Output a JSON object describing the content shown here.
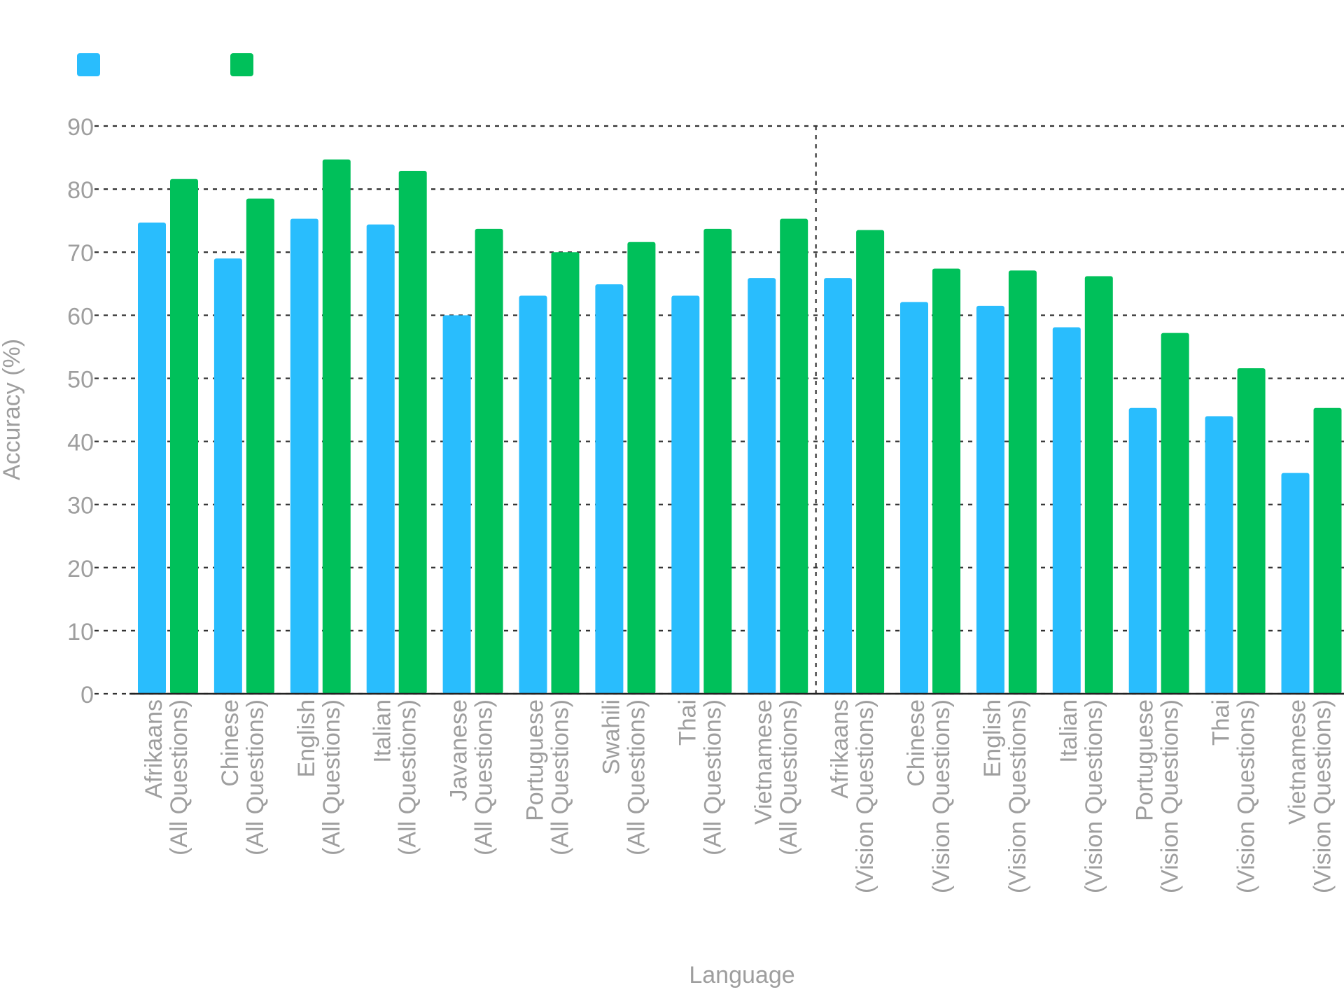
{
  "chart_data": {
    "type": "bar",
    "xlabel": "Language",
    "ylabel": "Accuracy (%)",
    "ylim": [
      0,
      90
    ],
    "yticks": [
      0,
      10,
      20,
      30,
      40,
      50,
      60,
      70,
      80,
      90
    ],
    "grid": true,
    "legend_position": "top-left",
    "categories": [
      "Afrikaans\n(All Questions)",
      "Chinese\n(All Questions)",
      "English\n(All Questions)",
      "Italian\n(All Questions)",
      "Javanese\n(All Questions)",
      "Portuguese\n(All Questions)",
      "Swahili\n(All Questions)",
      "Thai\n(All Questions)",
      "Vietnamese\n(All Questions)",
      "Afrikaans\n(Vision Questions)",
      "Chinese\n(Vision Questions)",
      "English\n(Vision Questions)",
      "Italian\n(Vision Questions)",
      "Portuguese\n(Vision Questions)",
      "Thai\n(Vision Questions)",
      "Vietnamese\n(Vision Questions)"
    ],
    "series": [
      {
        "color": "#29bdfd",
        "values": [
          74.7,
          69.0,
          75.3,
          74.4,
          60.0,
          63.1,
          64.9,
          63.1,
          65.9,
          65.9,
          62.1,
          61.5,
          58.1,
          45.3,
          44.0,
          35.0
        ]
      },
      {
        "color": "#00c05a",
        "values": [
          81.6,
          78.5,
          84.7,
          82.9,
          73.7,
          70.0,
          71.6,
          73.7,
          75.3,
          73.5,
          67.4,
          67.1,
          66.2,
          57.2,
          51.6,
          45.3
        ]
      }
    ]
  }
}
